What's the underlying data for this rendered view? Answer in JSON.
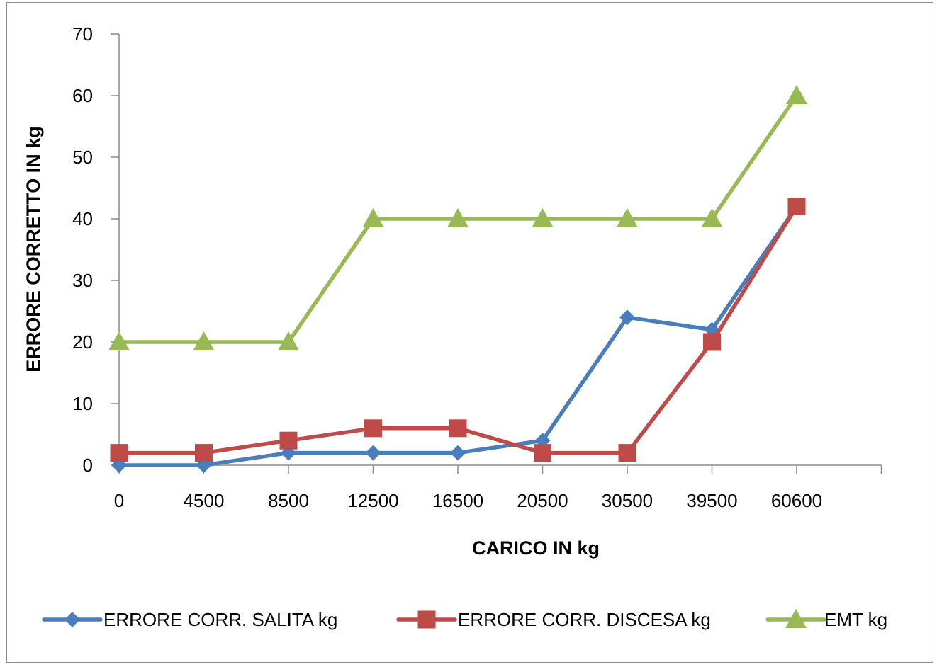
{
  "chart_data": {
    "type": "line",
    "categories": [
      "0",
      "4500",
      "8500",
      "12500",
      "16500",
      "20500",
      "30500",
      "39500",
      "60600"
    ],
    "series": [
      {
        "name": "ERRORE CORR. SALITA  kg",
        "color": "#4a7ebb",
        "marker": "diamond",
        "values": [
          0,
          0,
          2,
          2,
          2,
          4,
          24,
          22,
          42
        ]
      },
      {
        "name": "ERRORE CORR. DISCESA kg",
        "color": "#be4b48",
        "marker": "square",
        "values": [
          2,
          2,
          4,
          6,
          6,
          2,
          2,
          20,
          42
        ]
      },
      {
        "name": "EMT kg",
        "color": "#98b954",
        "marker": "triangle",
        "values": [
          20,
          20,
          20,
          40,
          40,
          40,
          40,
          40,
          60
        ]
      }
    ],
    "xlabel": "CARICO IN kg",
    "ylabel": "ERRORE CORRETTO IN kg",
    "ylim": [
      0,
      70
    ],
    "yticks": [
      0,
      10,
      20,
      30,
      40,
      50,
      60,
      70
    ],
    "grid": false,
    "legend": "bottom"
  }
}
